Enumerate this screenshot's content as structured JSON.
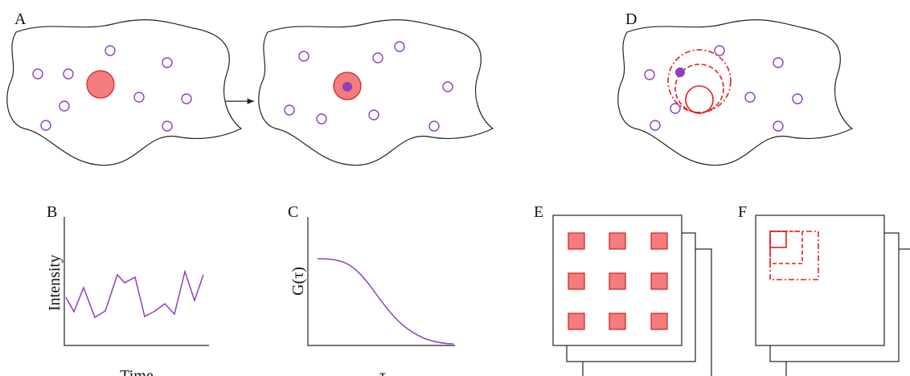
{
  "panels": [
    {
      "label": "A"
    },
    {
      "label": "B",
      "y_axis": "Intensity",
      "x_axis": "Time"
    },
    {
      "label": "C",
      "y_axis": "G(τ)",
      "x_axis": "τ"
    },
    {
      "label": "D"
    },
    {
      "label": "E"
    },
    {
      "label": "F"
    }
  ]
}
